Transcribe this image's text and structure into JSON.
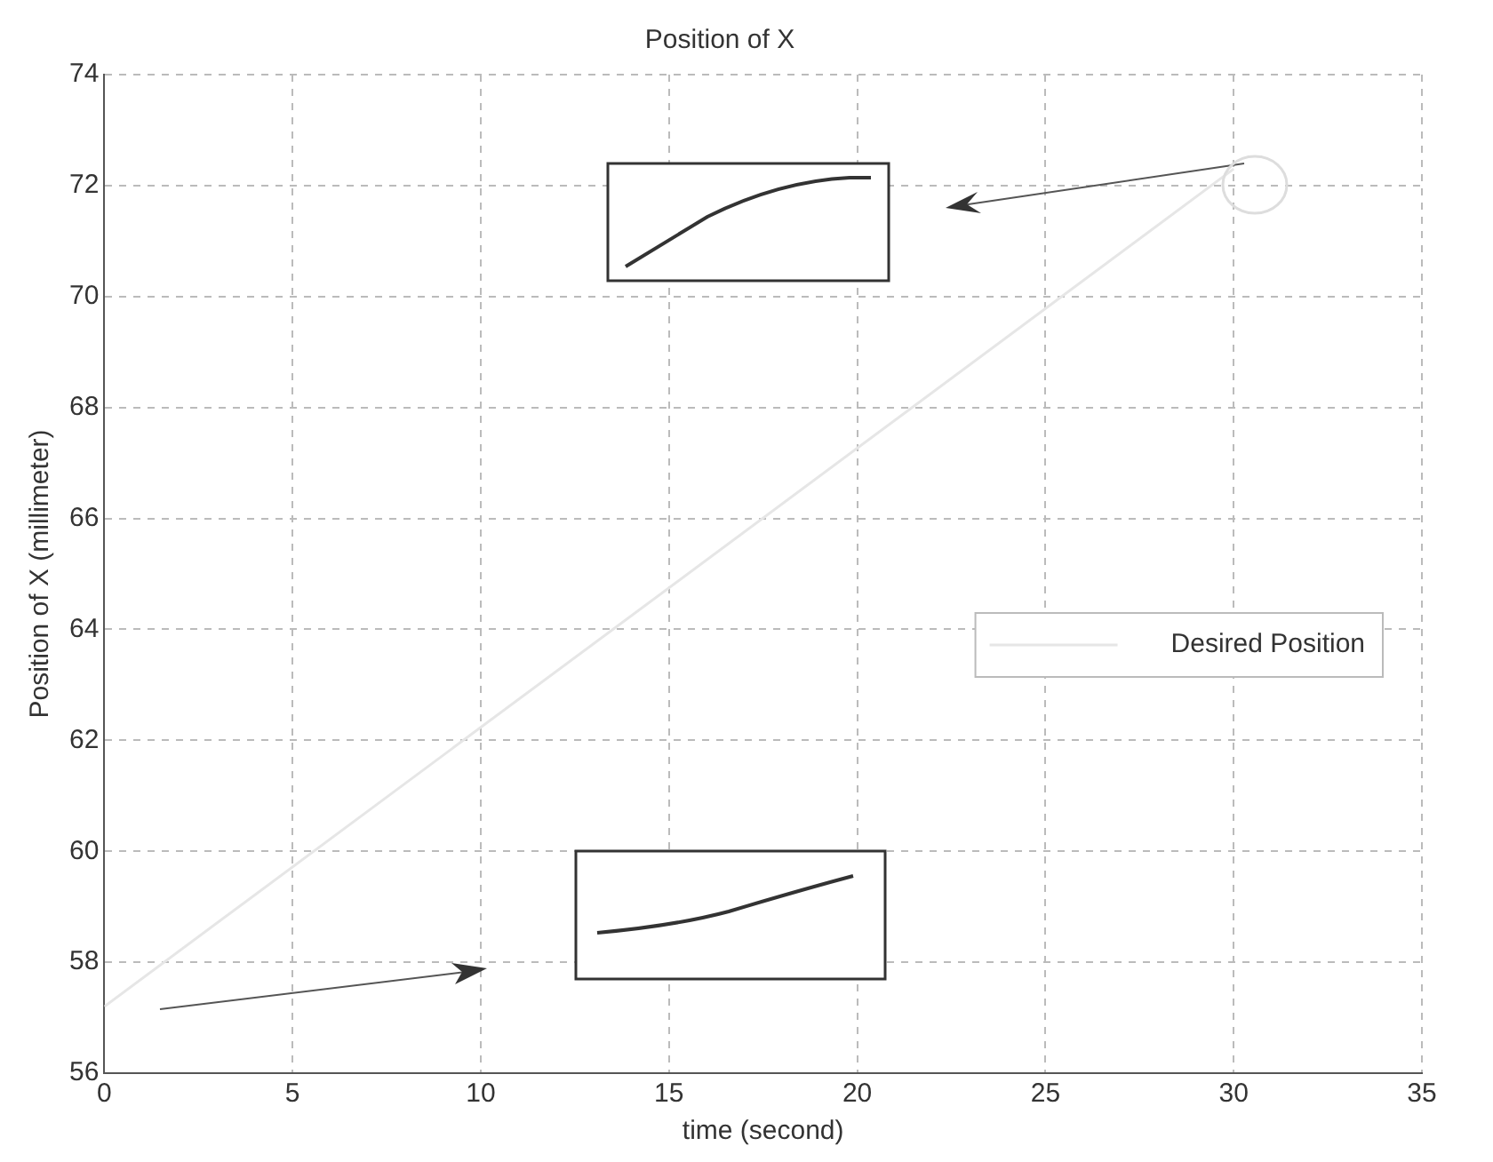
{
  "chart_data": {
    "type": "line",
    "title": "Position of X",
    "xlabel": "time (second)",
    "ylabel": "Position of X (millimeter)",
    "xlim": [
      0,
      35
    ],
    "xticks": [
      0,
      5,
      10,
      15,
      20,
      25,
      30,
      35
    ],
    "ylim": [
      56,
      74
    ],
    "yticks": [
      56,
      58,
      60,
      62,
      64,
      66,
      68,
      70,
      72,
      74
    ],
    "grid": true,
    "legend": "right",
    "series": [
      {
        "name": "Desired Position",
        "color": "#e6e6e6",
        "x": [
          0,
          30
        ],
        "values": [
          57.2,
          72.3
        ]
      }
    ]
  }
}
